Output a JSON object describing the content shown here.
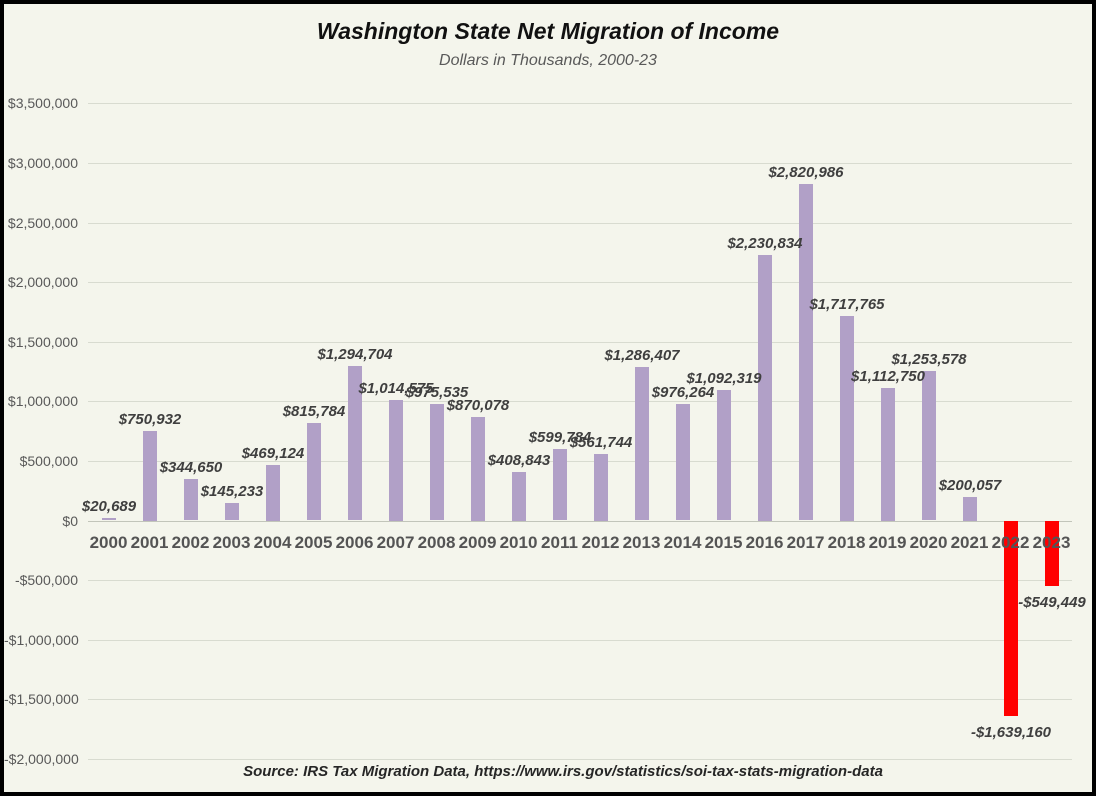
{
  "title": "Washington State Net Migration of Income",
  "subtitle": "Dollars in Thousands, 2000-23",
  "source_note": "Source: IRS Tax Migration Data,  https://www.irs.gov/statistics/soi-tax-stats-migration-data",
  "colors": {
    "background": "#f4f5ec",
    "frame_border": "#000000",
    "bar_positive": "#b1a0c7",
    "bar_negative": "#ff0000",
    "gridline": "#d8dbd0",
    "axis_text": "#595959",
    "data_label_text": "#3f3f3f"
  },
  "chart_data": {
    "type": "bar",
    "title": "Washington State Net Migration of Income",
    "subtitle": "Dollars in Thousands, 2000-23",
    "xlabel": "",
    "ylabel": "",
    "categories": [
      "2000",
      "2001",
      "2002",
      "2003",
      "2004",
      "2005",
      "2006",
      "2007",
      "2008",
      "2009",
      "2010",
      "2011",
      "2012",
      "2013",
      "2014",
      "2015",
      "2016",
      "2017",
      "2018",
      "2019",
      "2020",
      "2021",
      "2022",
      "2023"
    ],
    "values": [
      20689,
      750932,
      344650,
      145233,
      469124,
      815784,
      1294704,
      1014575,
      975535,
      870078,
      408843,
      599784,
      561744,
      1286407,
      976264,
      1092319,
      2230834,
      2820986,
      1717765,
      1112750,
      1253578,
      200057,
      -1639160,
      -549449
    ],
    "data_labels": [
      "$20,689",
      "$750,932",
      "$344,650",
      "$145,233",
      "$469,124",
      "$815,784",
      "$1,294,704",
      "$1,014,575",
      "$975,535",
      "$870,078",
      "$408,843",
      "$599,784",
      "$561,744",
      "$1,286,407",
      "$976,264",
      "$1,092,319",
      "$2,230,834",
      "$2,820,986",
      "$1,717,765",
      "$1,112,750",
      "$1,253,578",
      "$200,057",
      "-$1,639,160",
      "-$549,449"
    ],
    "y_ticks": [
      3500000,
      3000000,
      2500000,
      2000000,
      1500000,
      1000000,
      500000,
      0,
      -500000,
      -1000000,
      -1500000,
      -2000000
    ],
    "y_tick_labels": [
      "$3,500,000",
      "$3,000,000",
      "$2,500,000",
      "$2,000,000",
      "$1,500,000",
      "$1,000,000",
      "$500,000",
      "$0",
      "-$500,000",
      "-$1,000,000",
      "-$1,500,000",
      "-$2,000,000"
    ],
    "ylim": [
      -2000000,
      3500000
    ],
    "grid": true,
    "legend": false,
    "bar_color_positive": "#b1a0c7",
    "bar_color_negative": "#ff0000",
    "source": "Source: IRS Tax Migration Data,  https://www.irs.gov/statistics/soi-tax-stats-migration-data"
  }
}
